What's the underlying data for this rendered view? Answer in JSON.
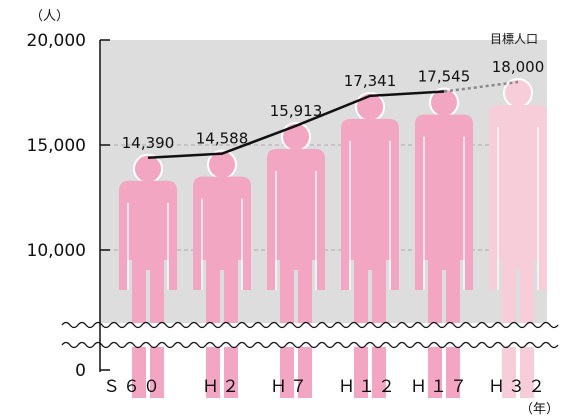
{
  "chart_data": {
    "type": "bar",
    "y_unit_label": "（人）",
    "x_unit_label": "（年）",
    "categories": [
      "Ｓ６０",
      "Ｈ２",
      "Ｈ７",
      "Ｈ１２",
      "Ｈ１７",
      "Ｈ３２"
    ],
    "values": [
      14390,
      14588,
      15913,
      17341,
      17545,
      18000
    ],
    "value_labels": [
      "14,390",
      "14,588",
      "15,913",
      "17,341",
      "17,545",
      "18,000"
    ],
    "projected_index": 5,
    "annotation": "目標人口",
    "y_ticks": [
      {
        "value": 20000,
        "label": "20,000"
      },
      {
        "value": 15000,
        "label": "15,000"
      },
      {
        "value": 10000,
        "label": "10,000"
      },
      {
        "value": 0,
        "label": "0"
      }
    ],
    "axis_break": true,
    "grid": "dashed at 15,000 and 10,000",
    "colors": {
      "background": "#dddddd",
      "figure_actual": "#f2a6c1",
      "figure_projected": "#f8cdda",
      "line": "#111111",
      "projected_line": "#888888",
      "gridline": "#aaaaaa"
    }
  }
}
